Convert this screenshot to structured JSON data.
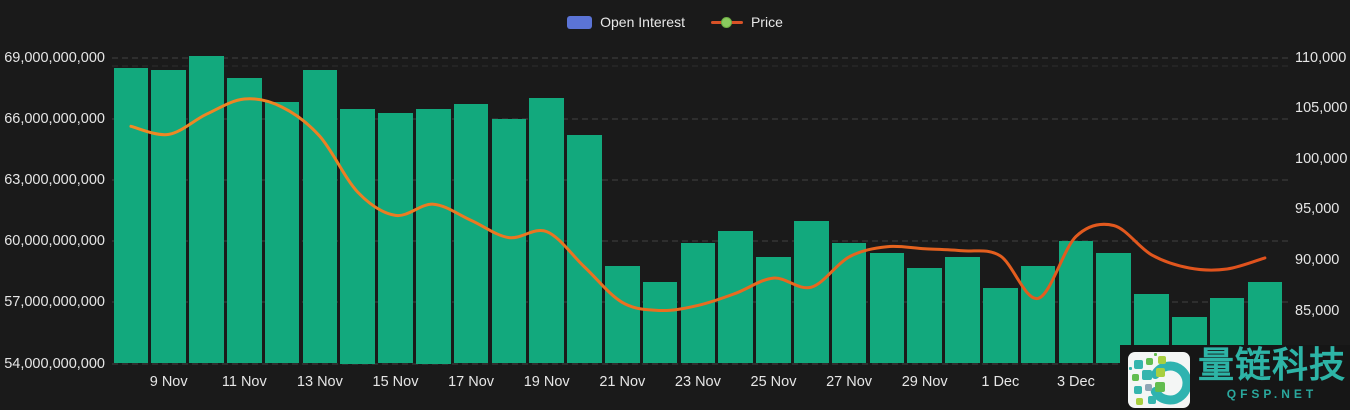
{
  "legend": {
    "items": [
      {
        "label": "Open Interest",
        "type": "bar",
        "color": "#5b74d6"
      },
      {
        "label": "Price",
        "type": "line",
        "line_color": "#d85227",
        "dot_color": "#8bcb5f"
      }
    ]
  },
  "chart_data": {
    "type": "bar+line",
    "title": "",
    "grid": "dashed horizontal",
    "categories": [
      "8 Nov",
      "9 Nov",
      "10 Nov",
      "11 Nov",
      "12 Nov",
      "13 Nov",
      "14 Nov",
      "15 Nov",
      "16 Nov",
      "17 Nov",
      "18 Nov",
      "19 Nov",
      "20 Nov",
      "21 Nov",
      "22 Nov",
      "23 Nov",
      "24 Nov",
      "25 Nov",
      "26 Nov",
      "27 Nov",
      "28 Nov",
      "29 Nov",
      "30 Nov",
      "1 Dec",
      "2 Dec",
      "3 Dec",
      "4 Dec",
      "5 Dec",
      "6 Dec",
      "7 Dec",
      "8 Dec"
    ],
    "x_axis": {
      "visible_tick_labels": [
        "9 Nov",
        "11 Nov",
        "13 Nov",
        "15 Nov",
        "17 Nov",
        "19 Nov",
        "21 Nov",
        "23 Nov",
        "25 Nov",
        "27 Nov",
        "29 Nov",
        "1 Dec",
        "3 Dec"
      ],
      "first_visible_tick_index": 1,
      "tick_interval": 2
    },
    "left_axis": {
      "ticks": [
        "69,000,000,000",
        "66,000,000,000",
        "63,000,000,000",
        "60,000,000,000",
        "57,000,000,000",
        "54,000,000,000"
      ],
      "min": 54000000000,
      "max": 69000000000
    },
    "right_axis": {
      "ticks": [
        "110,000",
        "105,000",
        "100,000",
        "95,000",
        "90,000",
        "85,000"
      ],
      "min": 85000,
      "max": 110000
    },
    "series": [
      {
        "name": "Open Interest",
        "type": "bar",
        "axis": "left",
        "color": "#12a97d",
        "values": [
          68500000000,
          68400000000,
          69050000000,
          68000000000,
          66800000000,
          68400000000,
          66500000000,
          66300000000,
          66500000000,
          66700000000,
          66000000000,
          67000000000,
          65200000000,
          58800000000,
          58000000000,
          59900000000,
          60500000000,
          59200000000,
          61000000000,
          59900000000,
          59400000000,
          58700000000,
          59200000000,
          57700000000,
          58800000000,
          60000000000,
          59400000000,
          57400000000,
          56300000000,
          57200000000,
          58000000000
        ]
      },
      {
        "name": "Price",
        "type": "line",
        "axis": "right",
        "color": "#ec7420",
        "smooth": true,
        "values": [
          103200,
          102400,
          104400,
          105900,
          105100,
          102200,
          96700,
          94400,
          95500,
          93900,
          92200,
          92800,
          89300,
          85800,
          85000,
          85500,
          86700,
          88200,
          87300,
          90300,
          91300,
          91100,
          90900,
          90400,
          86200,
          92300,
          93400,
          90500,
          89200,
          89100,
          90200
        ]
      }
    ]
  },
  "watermark": {
    "brand": "量链科技",
    "domain": "QFSP.NET"
  },
  "colors": {
    "background": "#1a1a1a",
    "bar": "#12a97d",
    "line": "#ec7420",
    "grid": "#2e2e2e",
    "axis_text": "#e6e6e6",
    "legend_swatch": "#5b74d6",
    "watermark_teal": "#2db4a6"
  }
}
